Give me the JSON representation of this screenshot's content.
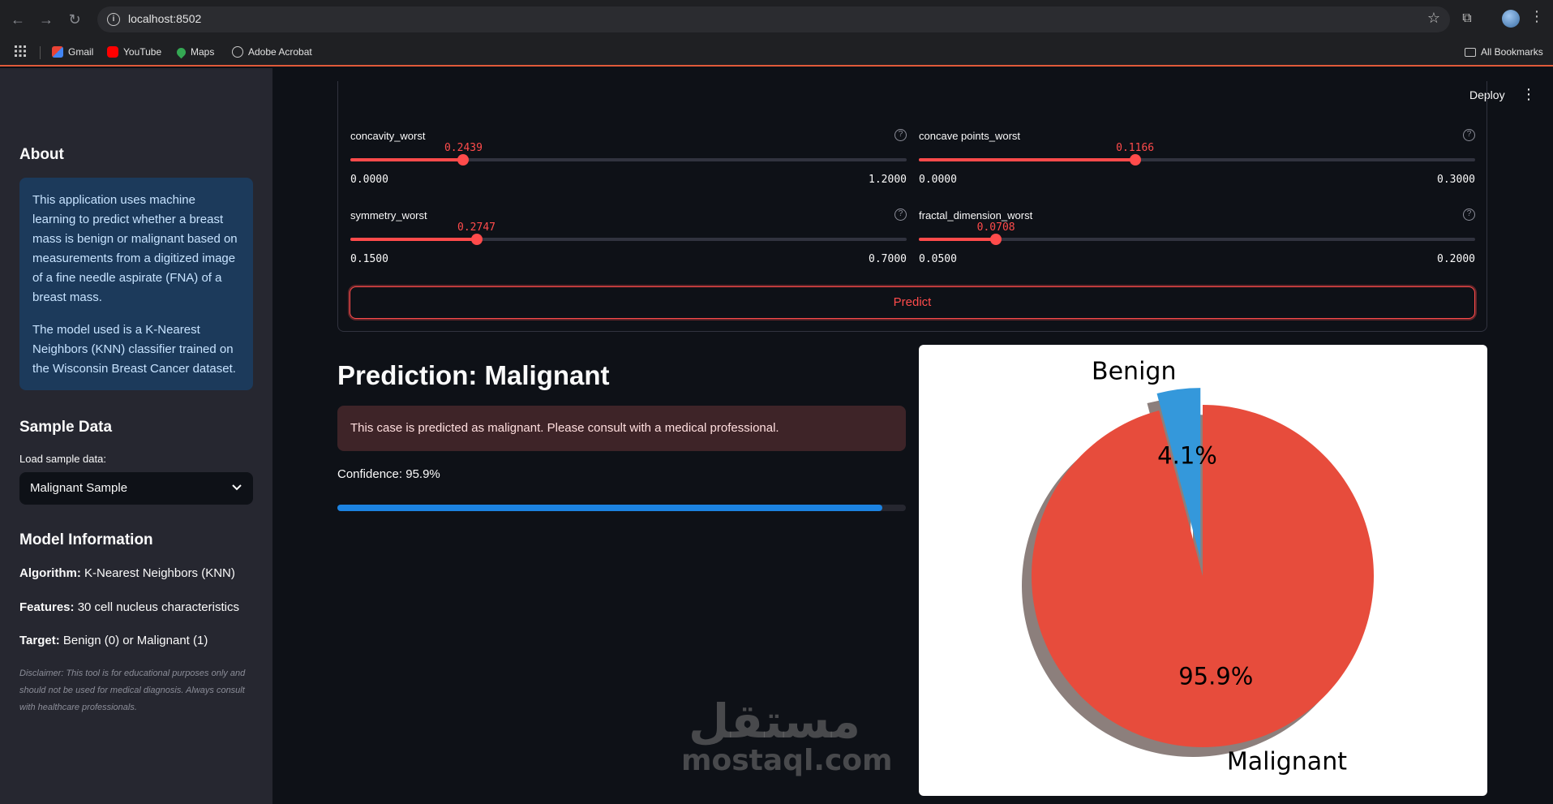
{
  "browser": {
    "url": "localhost:8502",
    "bookmarks": [
      "Gmail",
      "YouTube",
      "Maps",
      "Adobe Acrobat"
    ],
    "all_bookmarks": "All Bookmarks"
  },
  "header": {
    "deploy_label": "Deploy"
  },
  "sidebar": {
    "about_title": "About",
    "about_p1": "This application uses machine learning to predict whether a breast mass is benign or malignant based on measurements from a digitized image of a fine needle aspirate (FNA) of a breast mass.",
    "about_p2": "The model used is a K-Nearest Neighbors (KNN) classifier trained on the Wisconsin Breast Cancer dataset.",
    "sample_title": "Sample Data",
    "sample_label": "Load sample data:",
    "sample_value": "Malignant Sample",
    "model_title": "Model Information",
    "algorithm_key": "Algorithm:",
    "algorithm_value": "K-Nearest Neighbors (KNN)",
    "features_key": "Features:",
    "features_value": "30 cell nucleus characteristics",
    "target_key": "Target:",
    "target_value": "Benign (0) or Malignant (1)",
    "disclaimer": "Disclaimer: This tool is for educational purposes only and should not be used for medical diagnosis. Always consult with healthcare professionals."
  },
  "sliders": [
    {
      "label": "concavity_worst",
      "value": "0.2439",
      "min": "0.0000",
      "max": "1.2000",
      "fraction": 0.2033
    },
    {
      "label": "concave points_worst",
      "value": "0.1166",
      "min": "0.0000",
      "max": "0.3000",
      "fraction": 0.3887
    },
    {
      "label": "symmetry_worst",
      "value": "0.2747",
      "min": "0.1500",
      "max": "0.7000",
      "fraction": 0.2267
    },
    {
      "label": "fractal_dimension_worst",
      "value": "0.0708",
      "min": "0.0500",
      "max": "0.2000",
      "fraction": 0.1387
    }
  ],
  "predict_label": "Predict",
  "result": {
    "title": "Prediction: Malignant",
    "alert": "This case is predicted as malignant. Please consult with a medical professional.",
    "confidence_text": "Confidence: 95.9%",
    "confidence": 0.959
  },
  "chart_data": {
    "type": "pie",
    "labels": [
      "Benign",
      "Malignant"
    ],
    "values": [
      4.1,
      95.9
    ],
    "value_labels": [
      "4.1%",
      "95.9%"
    ],
    "colors": [
      "#3498db",
      "#e74c3c"
    ],
    "explode": [
      0.1,
      0
    ],
    "shadow": true,
    "start_angle": 90
  },
  "watermark": {
    "arabic": "مستقل",
    "latin": "mostaql.com"
  }
}
